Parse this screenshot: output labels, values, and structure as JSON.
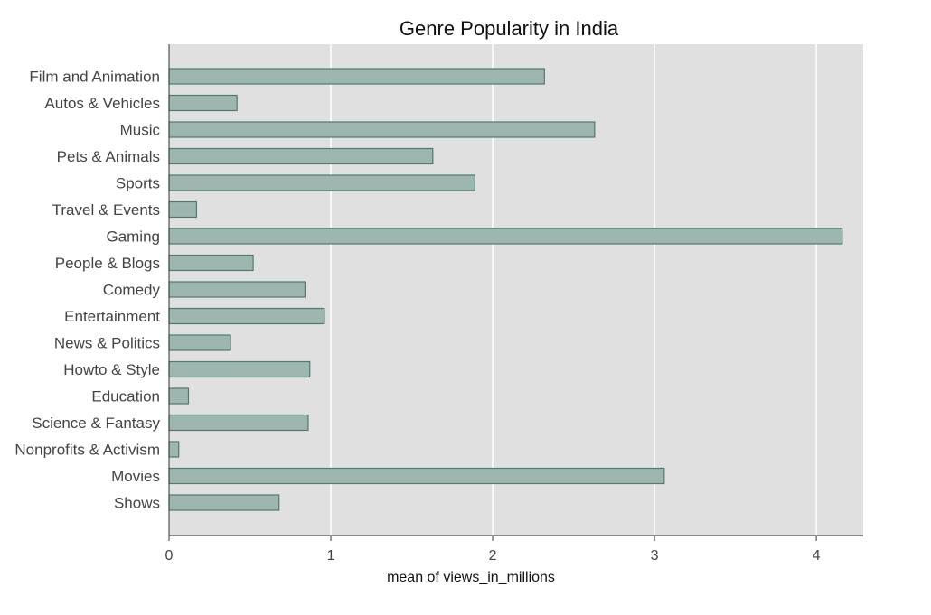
{
  "chart_data": {
    "type": "bar",
    "orientation": "horizontal",
    "title": "Genre Popularity in India",
    "xlabel": "mean of views_in_millions",
    "ylabel": "",
    "categories": [
      "Film and Animation",
      "Autos & Vehicles",
      "Music",
      "Pets & Animals",
      "Sports",
      "Travel & Events",
      "Gaming",
      "People & Blogs",
      "Comedy",
      "Entertainment",
      "News & Politics",
      "Howto & Style",
      "Education",
      "Science & Fantasy",
      "Nonprofits & Activism",
      "Movies",
      "Shows"
    ],
    "values": [
      2.32,
      0.42,
      2.63,
      1.63,
      1.89,
      0.17,
      4.16,
      0.52,
      0.84,
      0.96,
      0.38,
      0.87,
      0.12,
      0.86,
      0.06,
      3.06,
      0.68
    ],
    "xticks": [
      "0",
      "1",
      "2",
      "3",
      "4"
    ],
    "xlim": [
      0,
      4.29
    ],
    "grid": true,
    "colors": {
      "background": "#e0e0e0",
      "bar_fill": "#9eb6b0",
      "bar_edge": "#4f7a70",
      "grid": "#ffffff"
    }
  }
}
